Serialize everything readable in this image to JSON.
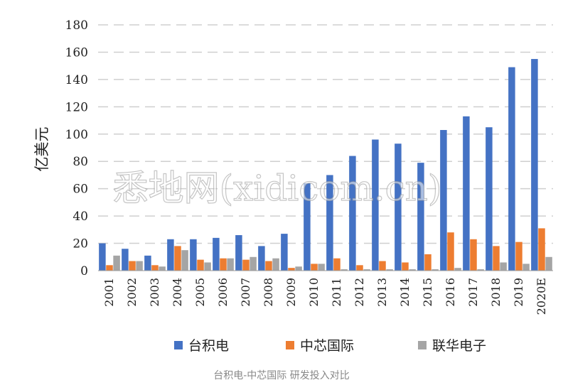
{
  "chart_data": {
    "type": "bar",
    "ylabel": "亿美元",
    "ylim": [
      0,
      180
    ],
    "yticks": [
      0,
      20,
      40,
      60,
      80,
      100,
      120,
      140,
      160,
      180
    ],
    "grid": true,
    "legend_position": "bottom",
    "categories": [
      "2001",
      "2002",
      "2003",
      "2004",
      "2005",
      "2006",
      "2007",
      "2008",
      "2009",
      "2010",
      "2011",
      "2012",
      "2013",
      "2014",
      "2015",
      "2016",
      "2017",
      "2018",
      "2019",
      "2020E"
    ],
    "series": [
      {
        "name": "台积电",
        "color": "#4472C4",
        "values": [
          20,
          16,
          11,
          23,
          23,
          24,
          26,
          18,
          27,
          64,
          70,
          84,
          96,
          93,
          79,
          103,
          113,
          105,
          149,
          155
        ]
      },
      {
        "name": "中芯国际",
        "color": "#ED7D31",
        "values": [
          4,
          7,
          4,
          18,
          8,
          9,
          8,
          7,
          2,
          5,
          9,
          4,
          7,
          6,
          12,
          28,
          23,
          18,
          21,
          31
        ]
      },
      {
        "name": "联华电子",
        "color": "#A5A5A5",
        "values": [
          11,
          7,
          3,
          15,
          6,
          9,
          10,
          9,
          3,
          5,
          1,
          1,
          1,
          1,
          1,
          2,
          1,
          6,
          5,
          10
        ]
      }
    ]
  },
  "watermark": "悉地网(xidicom.cn)",
  "caption": "台积电-中芯国际 研发投入对比"
}
